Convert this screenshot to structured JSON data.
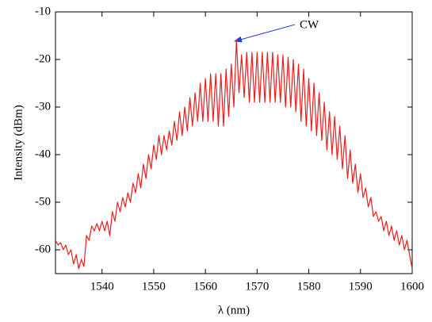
{
  "chart_data": {
    "type": "line",
    "x_label": "λ (nm)",
    "y_label": "Intensity (dBm)",
    "annotation": "CW",
    "xlim": [
      1531,
      1600
    ],
    "xticks": [
      1540,
      1550,
      1560,
      1570,
      1580,
      1590,
      1600
    ],
    "ylim": [
      -65,
      -10
    ],
    "yticks": [
      -60,
      -50,
      -40,
      -30,
      -20,
      -10
    ],
    "series": [
      {
        "color": "#ee1c1c",
        "x": [
          1531,
          1531.5,
          1532,
          1532.5,
          1533,
          1533.5,
          1534,
          1534.5,
          1535,
          1535.5,
          1536,
          1536.5,
          1537,
          1537.5,
          1538,
          1538.5,
          1539,
          1539.5,
          1540,
          1540.5,
          1541,
          1541.5,
          1542,
          1542.5,
          1543,
          1543.5,
          1544,
          1544.5,
          1545,
          1545.5,
          1546,
          1546.5,
          1547,
          1547.5,
          1548,
          1548.5,
          1549,
          1549.5,
          1550,
          1550.5,
          1551,
          1551.5,
          1552,
          1552.5,
          1553,
          1553.5,
          1554,
          1554.5,
          1555,
          1555.5,
          1556,
          1556.5,
          1557,
          1557.5,
          1558,
          1558.5,
          1559,
          1559.5,
          1560,
          1560.5,
          1561,
          1561.5,
          1562,
          1562.5,
          1563,
          1563.5,
          1564,
          1564.5,
          1565,
          1565.5,
          1566,
          1566.5,
          1567,
          1567.5,
          1568,
          1568.5,
          1569,
          1569.5,
          1570,
          1570.5,
          1571,
          1571.5,
          1572,
          1572.5,
          1573,
          1573.5,
          1574,
          1574.5,
          1575,
          1575.5,
          1576,
          1576.5,
          1577,
          1577.5,
          1578,
          1578.5,
          1579,
          1579.5,
          1580,
          1580.5,
          1581,
          1581.5,
          1582,
          1582.5,
          1583,
          1583.5,
          1584,
          1584.5,
          1585,
          1585.5,
          1586,
          1586.5,
          1587,
          1587.5,
          1588,
          1588.5,
          1589,
          1589.5,
          1590,
          1590.5,
          1591,
          1591.5,
          1592,
          1592.5,
          1593,
          1593.5,
          1594,
          1594.5,
          1595,
          1595.5,
          1596,
          1596.5,
          1597,
          1597.5,
          1598,
          1598.5,
          1599,
          1599.5,
          1600
        ],
        "values": [
          -58,
          -59,
          -58.5,
          -60,
          -59,
          -61,
          -60,
          -63,
          -61,
          -64,
          -62,
          -63.5,
          -57,
          -58,
          -55,
          -56,
          -54.5,
          -56,
          -54,
          -56,
          -54,
          -57,
          -52,
          -54,
          -50,
          -52,
          -49,
          -51,
          -48,
          -50,
          -46,
          -48,
          -44,
          -47,
          -42,
          -45,
          -40,
          -43,
          -38,
          -41,
          -36,
          -40,
          -36,
          -39,
          -35,
          -38,
          -33,
          -37,
          -31,
          -36,
          -30,
          -35,
          -28,
          -34,
          -27,
          -33,
          -25,
          -33,
          -24,
          -33,
          -23,
          -33,
          -23,
          -34,
          -23,
          -34,
          -22,
          -32,
          -21,
          -30,
          -16,
          -27,
          -19,
          -28,
          -18.5,
          -29,
          -18.5,
          -29,
          -18.5,
          -29,
          -18.5,
          -29,
          -18.5,
          -29,
          -18.5,
          -29,
          -19,
          -29,
          -19,
          -30,
          -19.5,
          -30,
          -20,
          -31,
          -21,
          -33,
          -22,
          -34,
          -24,
          -35,
          -25,
          -36,
          -27,
          -37,
          -29,
          -39,
          -31,
          -40,
          -32,
          -41,
          -34,
          -43,
          -36,
          -45,
          -39,
          -46,
          -42,
          -48,
          -44,
          -49,
          -47,
          -51,
          -49,
          -53,
          -52,
          -54,
          -53,
          -56,
          -54,
          -57,
          -55,
          -58,
          -56,
          -59,
          -57,
          -60,
          -58,
          -61,
          -64
        ]
      }
    ]
  }
}
